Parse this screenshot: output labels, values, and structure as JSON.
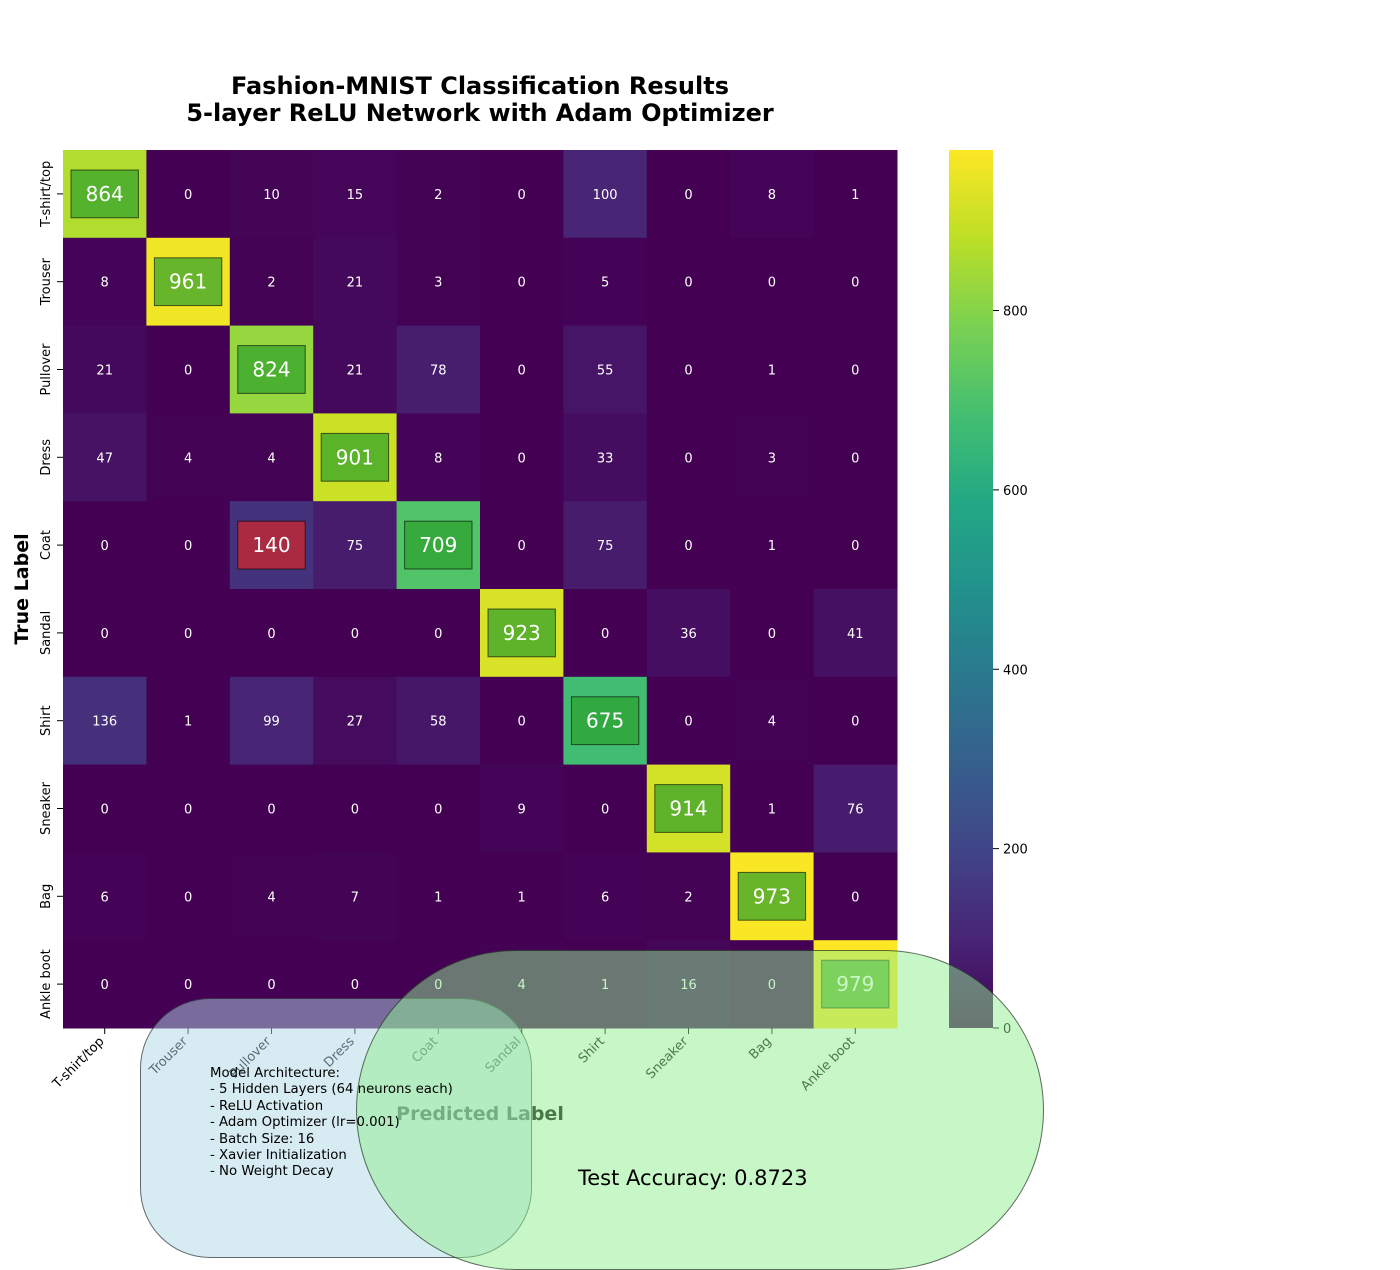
{
  "chart_data": {
    "type": "heatmap",
    "title": "Fashion-MNIST Classification Results",
    "subtitle": "5-layer ReLU Network with Adam Optimizer",
    "xlabel": "Predicted Label",
    "ylabel": "True Label",
    "categories": [
      "T-shirt/top",
      "Trouser",
      "Pullover",
      "Dress",
      "Coat",
      "Sandal",
      "Shirt",
      "Sneaker",
      "Bag",
      "Ankle boot"
    ],
    "matrix": [
      [
        864,
        0,
        10,
        15,
        2,
        0,
        100,
        0,
        8,
        1
      ],
      [
        8,
        961,
        2,
        21,
        3,
        0,
        5,
        0,
        0,
        0
      ],
      [
        21,
        0,
        824,
        21,
        78,
        0,
        55,
        0,
        1,
        0
      ],
      [
        47,
        4,
        4,
        901,
        8,
        0,
        33,
        0,
        3,
        0
      ],
      [
        0,
        0,
        140,
        75,
        709,
        0,
        75,
        0,
        1,
        0
      ],
      [
        0,
        0,
        0,
        0,
        0,
        923,
        0,
        36,
        0,
        41
      ],
      [
        136,
        1,
        99,
        27,
        58,
        0,
        675,
        0,
        4,
        0
      ],
      [
        0,
        0,
        0,
        0,
        0,
        9,
        0,
        914,
        1,
        76
      ],
      [
        6,
        0,
        4,
        7,
        1,
        1,
        6,
        2,
        973,
        0
      ],
      [
        0,
        0,
        0,
        0,
        0,
        4,
        1,
        16,
        0,
        979
      ]
    ],
    "colormap": "viridis",
    "vmin": 0,
    "vmax": 979,
    "colorbar_ticks": [
      0,
      200,
      400,
      600,
      800
    ],
    "highlight_colors": {
      "correct": "#2ca02c",
      "error": "#d62728"
    },
    "highlighted_errors": [
      [
        4,
        2
      ]
    ]
  },
  "annotations": {
    "architecture_lines": [
      "Model Architecture:",
      "- 5 Hidden Layers (64 neurons each)",
      "- ReLU Activation",
      "- Adam Optimizer (lr=0.001)",
      "- Batch Size: 16",
      "- Xavier Initialization",
      "- No Weight Decay"
    ],
    "accuracy_text": "Test Accuracy: 0.8723"
  }
}
